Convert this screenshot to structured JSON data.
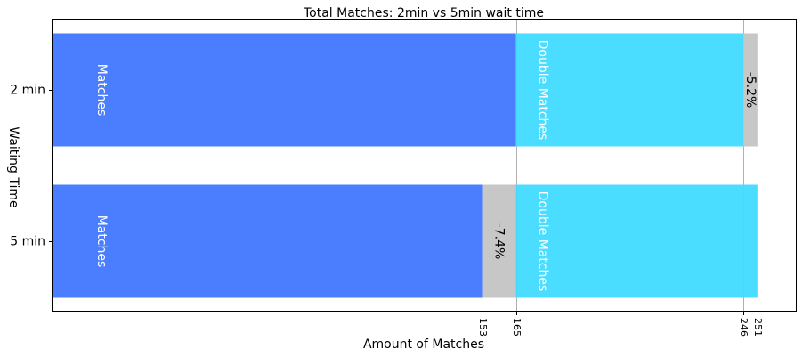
{
  "chart_data": {
    "type": "bar",
    "orientation": "horizontal",
    "stacked": true,
    "title": "Total Matches: 2min vs 5min wait time",
    "xlabel": "Amount of Matches",
    "ylabel": "Waiting Time",
    "xlim": [
      0,
      265
    ],
    "categories": [
      "2 min",
      "5 min"
    ],
    "x_ticks": [
      "153",
      "165",
      "246",
      "251"
    ],
    "x_tick_values": [
      153,
      165,
      246,
      251
    ],
    "grid": "vertical at ticks",
    "segments": [
      [
        {
          "kind": "matches",
          "label": "Matches",
          "start": 0,
          "end": 165,
          "color": "#4177ff",
          "text_color": "#ffffff"
        },
        {
          "kind": "double",
          "label": "Double Matches",
          "start": 165,
          "end": 246,
          "color": "#41dbff",
          "text_color": "#ffffff"
        },
        {
          "kind": "loss",
          "label": "-5.2%",
          "start": 246,
          "end": 251,
          "color": "#c4c4c4",
          "text_color": "#000000"
        }
      ],
      [
        {
          "kind": "matches",
          "label": "Matches",
          "start": 0,
          "end": 153,
          "color": "#4177ff",
          "text_color": "#ffffff"
        },
        {
          "kind": "loss",
          "label": "-7.4%",
          "start": 153,
          "end": 165,
          "color": "#c4c4c4",
          "text_color": "#000000"
        },
        {
          "kind": "double",
          "label": "Double Matches",
          "start": 165,
          "end": 251,
          "color": "#41dbff",
          "text_color": "#ffffff"
        }
      ]
    ]
  }
}
